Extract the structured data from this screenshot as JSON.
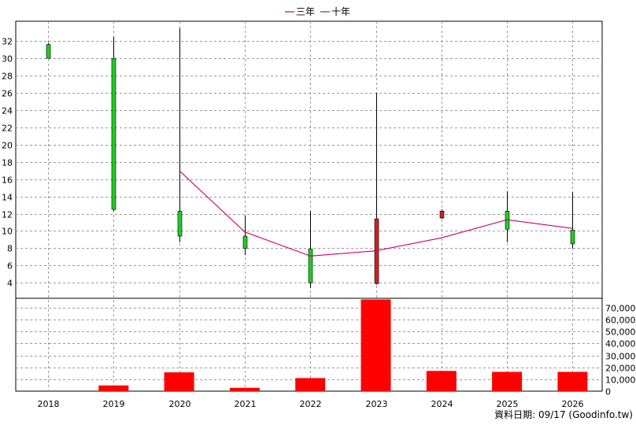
{
  "legend": {
    "three_year": "三年",
    "ten_year": "十年"
  },
  "footer": "資料日期: 09/17  (Goodinfo.tw)",
  "chart_data": {
    "type": "candlestick",
    "categories": [
      "2018",
      "2019",
      "2020",
      "2021",
      "2022",
      "2023",
      "2024",
      "2025",
      "2026"
    ],
    "price_axis": {
      "ylim": [
        2.2,
        34.3
      ],
      "ticks": [
        4,
        6,
        8,
        10,
        12,
        14,
        16,
        18,
        20,
        22,
        24,
        26,
        28,
        30,
        32
      ]
    },
    "volume_axis": {
      "ylim": [
        0,
        78000
      ],
      "ticks": [
        0,
        10000,
        20000,
        30000,
        40000,
        50000,
        60000,
        70000
      ],
      "tick_labels": [
        "0",
        "10,000",
        "20,000",
        "30,000",
        "40,000",
        "50,000",
        "60,000",
        "70,000"
      ]
    },
    "candles": [
      {
        "year": "2018",
        "open": 30.0,
        "high": 31.8,
        "low": 30.0,
        "close": 31.6,
        "color": "#22cc22"
      },
      {
        "year": "2019",
        "open": 30.0,
        "high": 32.5,
        "low": 12.3,
        "close": 12.5,
        "color": "#22cc22"
      },
      {
        "year": "2020",
        "open": 12.3,
        "high": 33.5,
        "low": 8.7,
        "close": 9.4,
        "color": "#22cc22"
      },
      {
        "year": "2021",
        "open": 9.4,
        "high": 11.8,
        "low": 7.2,
        "close": 8.0,
        "color": "#22cc22"
      },
      {
        "year": "2022",
        "open": 7.9,
        "high": 12.3,
        "low": 3.4,
        "close": 4.0,
        "color": "#22cc22"
      },
      {
        "year": "2023",
        "open": 3.9,
        "high": 26.0,
        "low": 3.8,
        "close": 11.4,
        "color": "#cc2222"
      },
      {
        "year": "2024",
        "open": 11.5,
        "high": 12.5,
        "low": 11.4,
        "close": 12.3,
        "color": "#cc2222"
      },
      {
        "year": "2025",
        "open": 12.3,
        "high": 14.6,
        "low": 8.7,
        "close": 10.2,
        "color": "#22cc22"
      },
      {
        "year": "2026",
        "open": 10.1,
        "high": 14.5,
        "low": 8.0,
        "close": 8.5,
        "color": "#22cc22"
      }
    ],
    "series": [
      {
        "name": "三年",
        "color": "#cc0066",
        "values": [
          null,
          null,
          17.0,
          9.9,
          7.1,
          7.7,
          9.2,
          11.3,
          10.3
        ]
      },
      {
        "name": "十年",
        "color": "#7a1fa8",
        "values": [
          null,
          null,
          null,
          null,
          null,
          null,
          null,
          null,
          null
        ]
      }
    ],
    "volume": [
      0,
      4800,
      15800,
      2800,
      11000,
      77000,
      17000,
      16200,
      16200
    ],
    "volume_color": "#ff0000",
    "grid": true,
    "legend_position": "top-center"
  }
}
